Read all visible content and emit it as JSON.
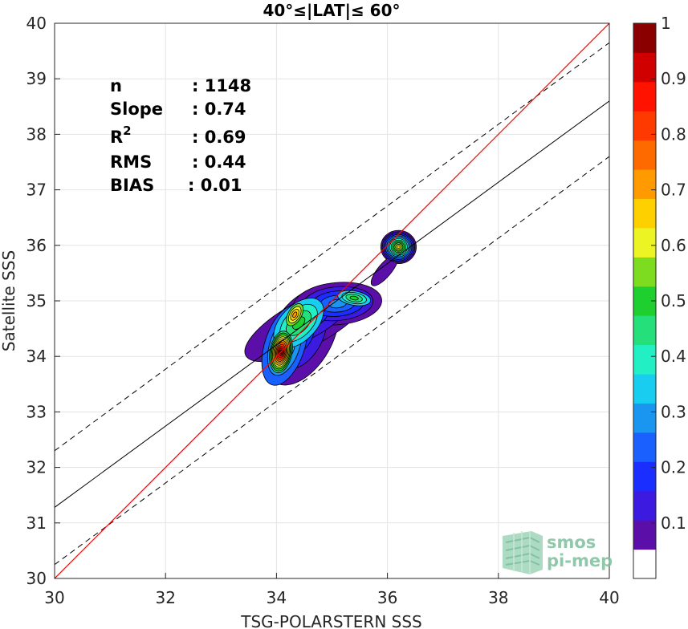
{
  "chart_data": {
    "type": "contour-scatter",
    "title": "40°≤|LAT|≤ 60°",
    "xlabel": "TSG-POLARSTERN SSS",
    "ylabel": "Satellite SSS",
    "xlim": [
      30,
      40
    ],
    "ylim": [
      30,
      40
    ],
    "xticks": [
      "30",
      "32",
      "34",
      "36",
      "38",
      "40"
    ],
    "yticks": [
      "30",
      "31",
      "32",
      "33",
      "34",
      "35",
      "36",
      "37",
      "38",
      "39",
      "40"
    ],
    "grid": true,
    "stats": [
      {
        "label": "n",
        "value": ": 1148"
      },
      {
        "label": "Slope",
        "value": ": 0.74"
      },
      {
        "label": "R",
        "sup": "2",
        "value": ": 0.69"
      },
      {
        "label": "RMS",
        "value": ": 0.44"
      },
      {
        "label": "BIAS",
        "value": ": 0.01"
      }
    ],
    "lines": {
      "identity": {
        "from": [
          30,
          30
        ],
        "to": [
          40,
          40
        ],
        "color": "#ff0000"
      },
      "fit": {
        "from": [
          30,
          31.28
        ],
        "to": [
          40,
          38.6
        ],
        "color": "#000000"
      },
      "fit_upper": {
        "from": [
          30,
          32.3
        ],
        "to": [
          40,
          39.65
        ],
        "style": "dashed"
      },
      "fit_lower": {
        "from": [
          30,
          30.25
        ],
        "to": [
          40,
          37.6
        ],
        "style": "dashed"
      }
    },
    "colorbar": {
      "range": [
        0,
        1
      ],
      "ticks": [
        "0.1",
        "0.2",
        "0.3",
        "0.4",
        "0.5",
        "0.6",
        "0.7",
        "0.8",
        "0.9",
        "1"
      ],
      "colors": [
        "#ffffff",
        "#5b0fa8",
        "#3c1ae0",
        "#1a2eff",
        "#1a60ff",
        "#1a95f0",
        "#19cdf0",
        "#22f0c4",
        "#25e07a",
        "#1fcf30",
        "#7ddc20",
        "#ecf523",
        "#ffd000",
        "#ff9a00",
        "#ff6a00",
        "#ff3a00",
        "#ff1200",
        "#d00000",
        "#8a0000"
      ]
    },
    "density_peaks": [
      {
        "x": 34.05,
        "y": 34.05,
        "value": 1.0
      },
      {
        "x": 34.3,
        "y": 34.75,
        "value": 0.75
      },
      {
        "x": 35.4,
        "y": 35.05,
        "value": 0.5
      },
      {
        "x": 36.2,
        "y": 35.97,
        "value": 0.6
      }
    ]
  },
  "logo": {
    "line1": "smos",
    "line2": "pi-mep"
  }
}
